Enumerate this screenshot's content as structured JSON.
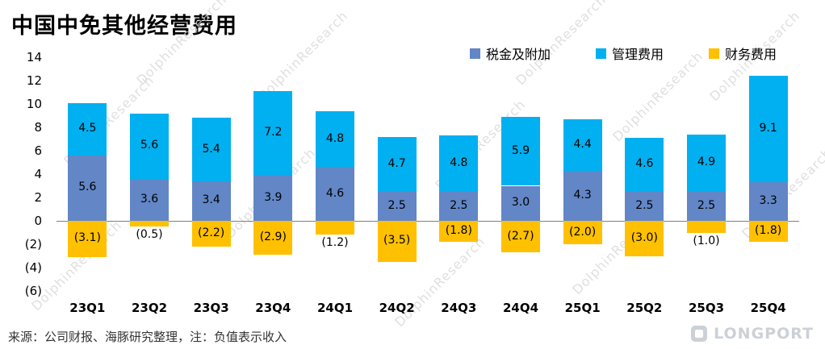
{
  "title": "中国中免其他经营费用",
  "source_note": "来源：公司财报、海豚研究整理，注：负值表示收入",
  "watermark_text": "DolphinResearch",
  "logo_text": "LONGPORT",
  "colors": {
    "tax": "#6286C6",
    "admin": "#00B0F0",
    "finance": "#FFC000",
    "axis": "#7f7f7f"
  },
  "chart_data": {
    "type": "bar",
    "stacked": true,
    "title": "中国中免其他经营费用",
    "categories": [
      "23Q1",
      "23Q2",
      "23Q3",
      "23Q4",
      "24Q1",
      "24Q2",
      "24Q3",
      "24Q4",
      "25Q1",
      "25Q2",
      "25Q3",
      "25Q4"
    ],
    "series": [
      {
        "name": "税金及附加",
        "color_key": "tax",
        "values": [
          5.6,
          3.6,
          3.4,
          3.9,
          4.6,
          2.5,
          2.5,
          3.0,
          4.3,
          2.5,
          2.5,
          3.3
        ]
      },
      {
        "name": "管理费用",
        "color_key": "admin",
        "values": [
          4.5,
          5.6,
          5.4,
          7.2,
          4.8,
          4.7,
          4.8,
          5.9,
          4.4,
          4.6,
          4.9,
          9.1
        ]
      },
      {
        "name": "财务费用",
        "color_key": "finance",
        "values": [
          -3.1,
          -0.5,
          -2.2,
          -2.9,
          -1.2,
          -3.5,
          -1.8,
          -2.7,
          -2.0,
          -3.0,
          -1.0,
          -1.8
        ]
      }
    ],
    "ylim": [
      -6,
      14
    ],
    "tick_values": [
      14,
      12,
      10,
      8,
      6,
      4,
      2,
      0,
      -2,
      -4,
      -6
    ],
    "tick_labels": [
      "14",
      "12",
      "10",
      "8",
      "6",
      "4",
      "2",
      "0",
      "(2)",
      "(4)",
      "(6)"
    ],
    "legend_position": "top-right",
    "grid": false,
    "note": "负值表示收入"
  }
}
